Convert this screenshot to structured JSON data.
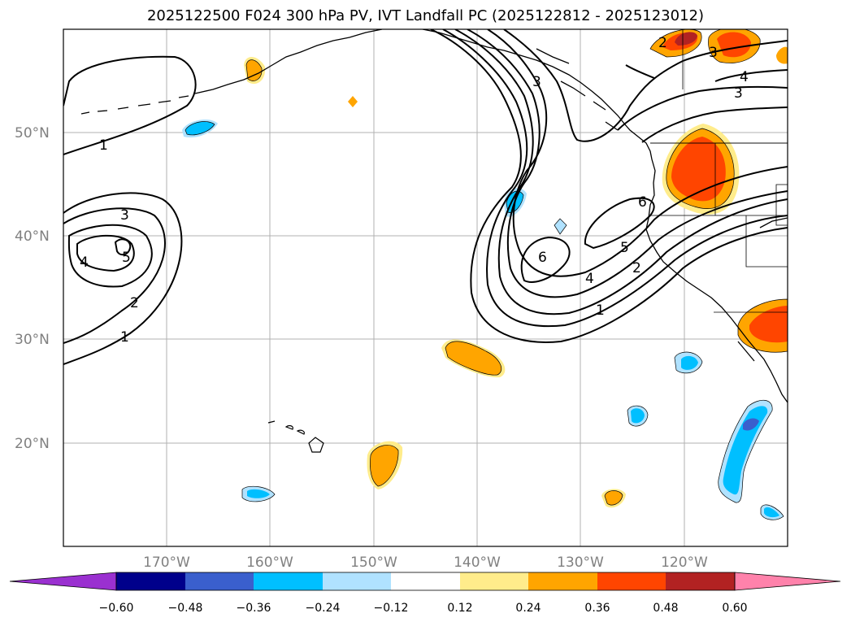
{
  "title": "2025122500 F024 300 hPa PV, IVT Landfall PC (2025122812 - 2025123012)",
  "lat_labels": [
    "50°N",
    "40°N",
    "30°N",
    "20°N"
  ],
  "lon_labels": [
    "170°W",
    "160°W",
    "150°W",
    "140°W",
    "130°W",
    "120°W"
  ],
  "colorbar": {
    "ticks": [
      "−0.60",
      "−0.48",
      "−0.36",
      "−0.24",
      "−0.12",
      "0.12",
      "0.24",
      "0.36",
      "0.48",
      "0.60"
    ],
    "colors": [
      "#9a30d0",
      "#00008b",
      "#3a5fcd",
      "#00bfff",
      "#b0e2ff",
      "#ffffff",
      "#ffec8b",
      "#ffa500",
      "#ff4500",
      "#b22222",
      "#ff82ab"
    ]
  },
  "contour_labels": [
    "1",
    "2",
    "3",
    "4",
    "5",
    "6",
    "1",
    "2",
    "3",
    "4",
    "5",
    "6",
    "3",
    "4",
    "1",
    "2",
    "3"
  ],
  "colors": {
    "grid": "#b0b0b0",
    "contour": "#000000"
  }
}
